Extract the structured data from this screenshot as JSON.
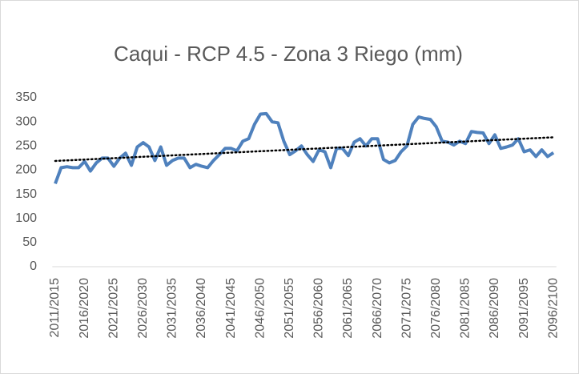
{
  "chart_data": {
    "type": "line",
    "title": "Caqui - RCP 4.5 - Zona 3 Riego (mm)",
    "categories": [
      "2011/2015",
      null,
      null,
      null,
      null,
      "2016/2020",
      null,
      null,
      null,
      null,
      "2021/2025",
      null,
      null,
      null,
      null,
      "2026/2030",
      null,
      null,
      null,
      null,
      "2031/2035",
      null,
      null,
      null,
      null,
      "2036/2040",
      null,
      null,
      null,
      null,
      "2041/2045",
      null,
      null,
      null,
      null,
      "2046/2050",
      null,
      null,
      null,
      null,
      "2051/2055",
      null,
      null,
      null,
      null,
      "2056/2060",
      null,
      null,
      null,
      null,
      "2061/2065",
      null,
      null,
      null,
      null,
      "2066/2070",
      null,
      null,
      null,
      null,
      "2071/2075",
      null,
      null,
      null,
      null,
      "2076/2080",
      null,
      null,
      null,
      null,
      "2081/2085",
      null,
      null,
      null,
      null,
      "2086/2090",
      null,
      null,
      null,
      null,
      "2091/2095",
      null,
      null,
      null,
      null,
      "2096/2100"
    ],
    "series": [
      {
        "color": "#4f81bd",
        "values": [
          172,
          205,
          207,
          205,
          205,
          218,
          198,
          215,
          225,
          225,
          208,
          225,
          235,
          210,
          248,
          257,
          248,
          220,
          248,
          210,
          220,
          225,
          225,
          205,
          212,
          208,
          205,
          220,
          232,
          245,
          245,
          240,
          260,
          265,
          295,
          316,
          317,
          300,
          298,
          260,
          232,
          240,
          250,
          232,
          218,
          242,
          238,
          205,
          245,
          245,
          230,
          258,
          265,
          250,
          265,
          265,
          222,
          215,
          220,
          238,
          250,
          295,
          310,
          307,
          305,
          290,
          260,
          258,
          252,
          260,
          255,
          280,
          278,
          277,
          255,
          273,
          245,
          248,
          252,
          265,
          238,
          242,
          228,
          242,
          228,
          236
        ]
      }
    ],
    "trendline": {
      "color": "#000000",
      "values": [
        219,
        268
      ]
    },
    "ylim": [
      0,
      350
    ],
    "yticks": [
      0,
      50,
      100,
      150,
      200,
      250,
      300,
      350
    ],
    "grid": false
  }
}
